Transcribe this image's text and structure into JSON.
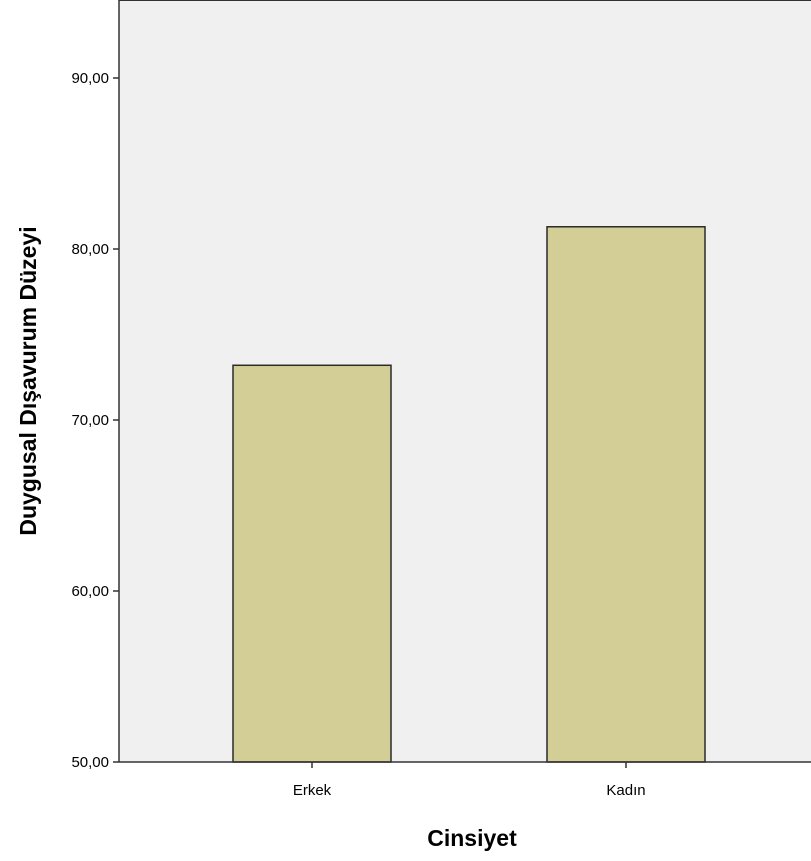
{
  "chart_data": {
    "type": "bar",
    "title": "",
    "xlabel": "Cinsiyet",
    "ylabel": "Duygusal Dışavurum Düzeyi",
    "categories": [
      "Erkek",
      "Kadın"
    ],
    "values": [
      73.2,
      81.3
    ],
    "ylim": [
      50,
      95
    ],
    "yticks": [
      50,
      60,
      70,
      80,
      90
    ],
    "ytick_labels": [
      "50,00",
      "60,00",
      "70,00",
      "80,00",
      "90,00"
    ],
    "grid": false,
    "legend": "none",
    "colors": {
      "bar_fill": "#d3cd96",
      "bar_stroke": "#2b2b2b",
      "plot_background": "#f0f0f0",
      "axis": "#333333"
    }
  }
}
